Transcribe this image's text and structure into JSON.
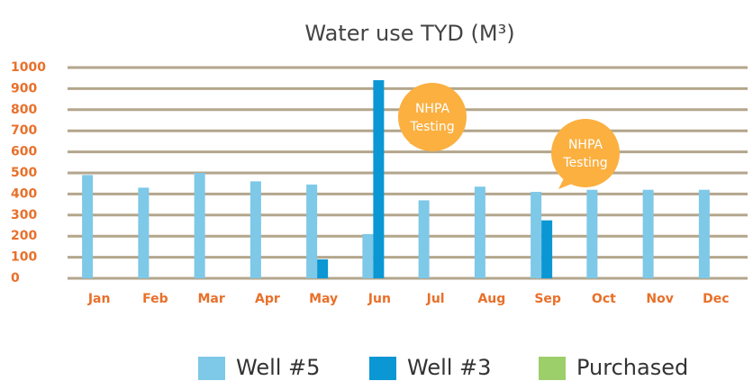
{
  "chart_data": {
    "type": "bar",
    "title": "Water use TYD (M³)",
    "categories": [
      "Jan",
      "Feb",
      "Mar",
      "Apr",
      "May",
      "Jun",
      "Jul",
      "Aug",
      "Sep",
      "Oct",
      "Nov",
      "Dec"
    ],
    "series": [
      {
        "name": "Well #5",
        "color": "#7ec8e8",
        "values": [
          490,
          430,
          500,
          460,
          445,
          210,
          370,
          435,
          410,
          420,
          420,
          420
        ]
      },
      {
        "name": "Well #3",
        "color": "#0a97d4",
        "values": [
          null,
          null,
          null,
          null,
          90,
          940,
          null,
          null,
          275,
          null,
          null,
          null
        ]
      },
      {
        "name": "Purchased",
        "color": "#9ccf6a",
        "values": [
          null,
          null,
          null,
          null,
          null,
          null,
          null,
          null,
          null,
          null,
          null,
          null
        ]
      }
    ],
    "ylim": [
      0,
      1000
    ],
    "yticks": [
      0,
      100,
      200,
      300,
      400,
      500,
      600,
      700,
      800,
      900,
      1000
    ],
    "grid": true,
    "annotations": [
      {
        "lines": [
          "NHPA",
          "Testing"
        ]
      },
      {
        "lines": [
          "NHPA",
          "Testing"
        ]
      }
    ]
  }
}
